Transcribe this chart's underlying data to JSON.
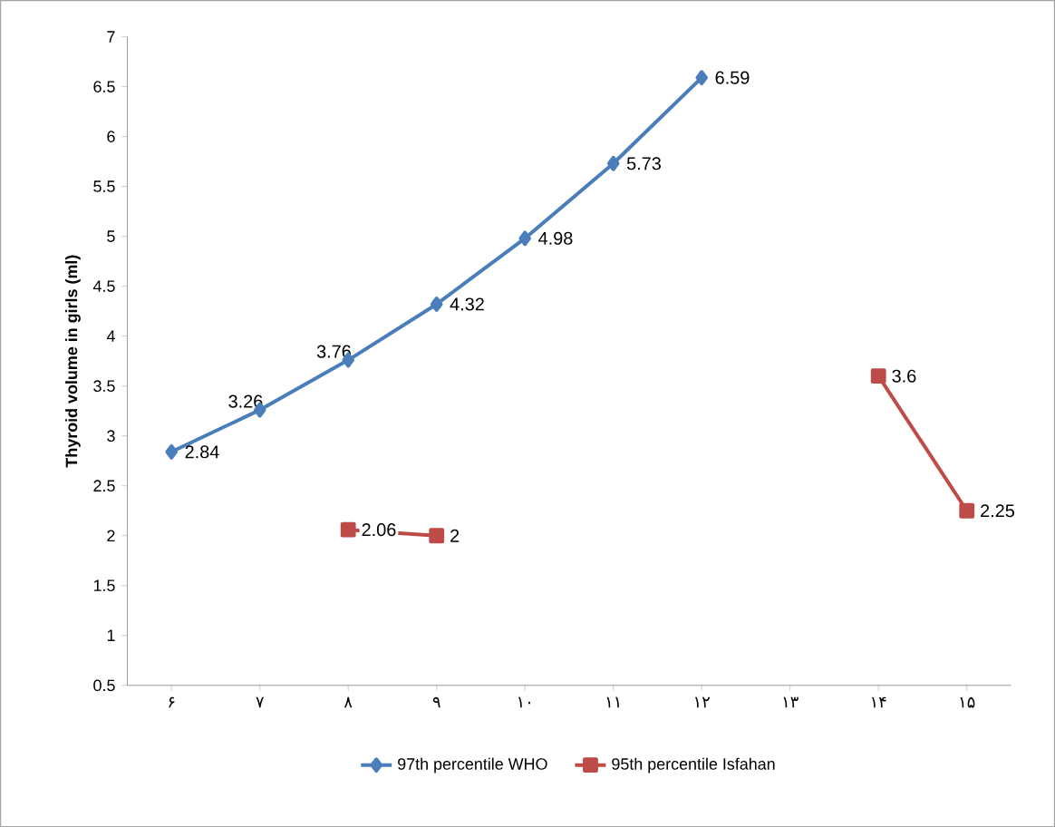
{
  "chart_data": {
    "type": "line",
    "ylabel": "Thyroid volume in girls (ml)",
    "categories": [
      "۶",
      "۷",
      "۸",
      "۹",
      "۱۰",
      "۱۱",
      "۱۲",
      "۱۳",
      "۱۴",
      "۱۵"
    ],
    "series": [
      {
        "name": "97th percentile WHO",
        "color": "#4a7ebb",
        "marker": "diamond",
        "values": [
          2.84,
          3.26,
          3.76,
          4.32,
          4.98,
          5.73,
          6.59,
          null,
          null,
          null
        ]
      },
      {
        "name": "95th percentile Isfahan",
        "color": "#be4b48",
        "marker": "square",
        "values": [
          null,
          null,
          2.06,
          2,
          null,
          null,
          null,
          null,
          3.6,
          2.25
        ]
      }
    ],
    "ylim": [
      0.5,
      7
    ],
    "yticks": [
      0.5,
      1,
      1.5,
      2,
      2.5,
      3,
      3.5,
      4,
      4.5,
      5,
      5.5,
      6,
      6.5,
      7
    ],
    "data_labels": true,
    "grid": false,
    "legend": "bottom",
    "line_style": "solid"
  }
}
